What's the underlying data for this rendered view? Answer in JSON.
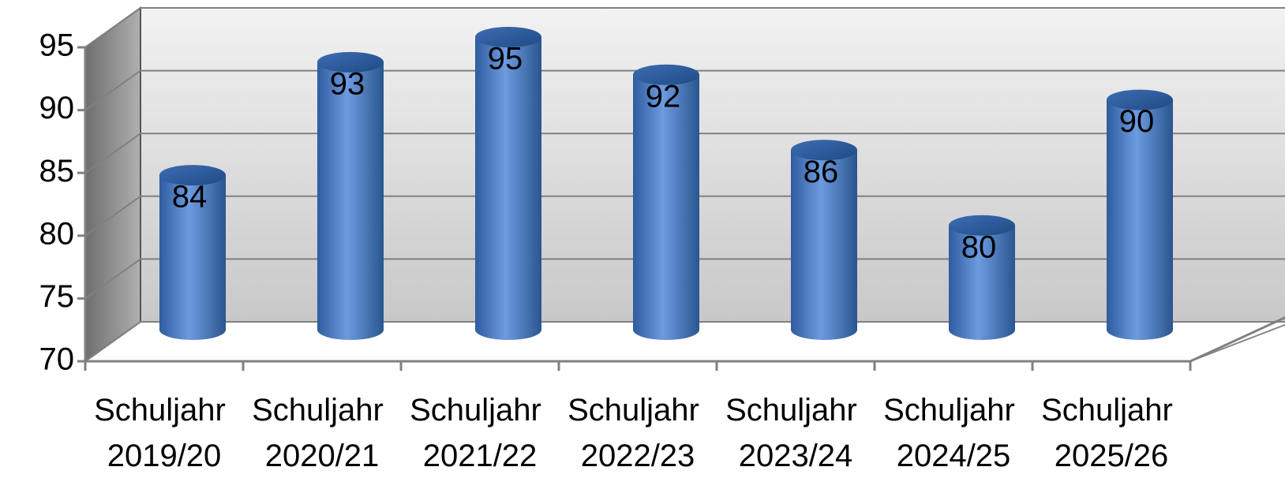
{
  "chart_data": {
    "type": "bar3d",
    "categories": [
      "Schuljahr 2019/20",
      "Schuljahr 2020/21",
      "Schuljahr 2021/22",
      "Schuljahr 2022/23",
      "Schuljahr 2023/24",
      "Schuljahr 2024/25",
      "Schuljahr 2025/26"
    ],
    "values": [
      84,
      93,
      95,
      92,
      86,
      80,
      90
    ],
    "color": "#4a7ec8",
    "ylim": [
      70,
      95
    ],
    "yticks": [
      70,
      75,
      80,
      85,
      90,
      95
    ],
    "grid": true
  }
}
